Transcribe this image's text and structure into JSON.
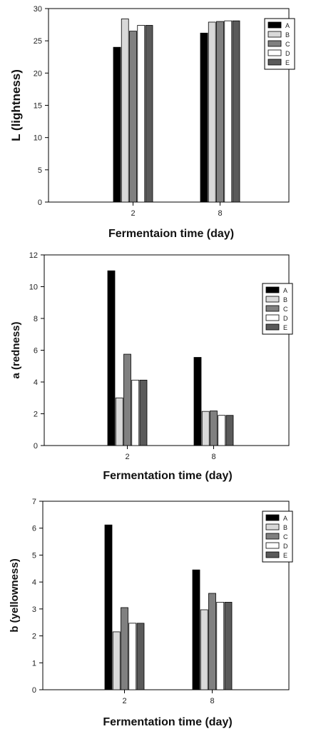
{
  "colors": {
    "A": "#000000",
    "B": "#d9d9d9",
    "C": "#808080",
    "D": "#ffffff",
    "E": "#5a5a5a"
  },
  "chart_data": [
    {
      "type": "bar",
      "categories": [
        "2",
        "8"
      ],
      "series": [
        {
          "name": "A",
          "values": [
            24.0,
            26.2
          ]
        },
        {
          "name": "B",
          "values": [
            28.4,
            27.9
          ]
        },
        {
          "name": "C",
          "values": [
            26.5,
            28.0
          ]
        },
        {
          "name": "D",
          "values": [
            27.4,
            28.1
          ]
        },
        {
          "name": "E",
          "values": [
            27.4,
            28.1
          ]
        }
      ],
      "title": "",
      "xlabel": "Fermentaion time (day)",
      "ylabel": "L (lightness)",
      "ylim": [
        0,
        30
      ],
      "yticks": [
        "0",
        "5",
        "10",
        "15",
        "20",
        "25",
        "30"
      ],
      "legend": "top-right",
      "grid": false
    },
    {
      "type": "bar",
      "categories": [
        "2",
        "8"
      ],
      "series": [
        {
          "name": "A",
          "values": [
            11.0,
            5.55
          ]
        },
        {
          "name": "B",
          "values": [
            3.0,
            2.15
          ]
        },
        {
          "name": "C",
          "values": [
            5.75,
            2.18
          ]
        },
        {
          "name": "D",
          "values": [
            4.12,
            1.9
          ]
        },
        {
          "name": "E",
          "values": [
            4.12,
            1.9
          ]
        }
      ],
      "title": "",
      "xlabel": "Fermentation time (day)",
      "ylabel": "a (redness)",
      "ylim": [
        0,
        12
      ],
      "yticks": [
        "0",
        "2",
        "4",
        "6",
        "8",
        "10",
        "12"
      ],
      "legend": "top-right",
      "grid": false
    },
    {
      "type": "bar",
      "categories": [
        "2",
        "8"
      ],
      "series": [
        {
          "name": "A",
          "values": [
            6.12,
            4.45
          ]
        },
        {
          "name": "B",
          "values": [
            2.15,
            2.97
          ]
        },
        {
          "name": "C",
          "values": [
            3.05,
            3.58
          ]
        },
        {
          "name": "D",
          "values": [
            2.47,
            3.25
          ]
        },
        {
          "name": "E",
          "values": [
            2.47,
            3.25
          ]
        }
      ],
      "title": "",
      "xlabel": "Fermentation time (day)",
      "ylabel": "b (yellowness)",
      "ylim": [
        0,
        7
      ],
      "yticks": [
        "0",
        "1",
        "2",
        "3",
        "4",
        "5",
        "6",
        "7"
      ],
      "legend": "top-right",
      "grid": false
    }
  ]
}
